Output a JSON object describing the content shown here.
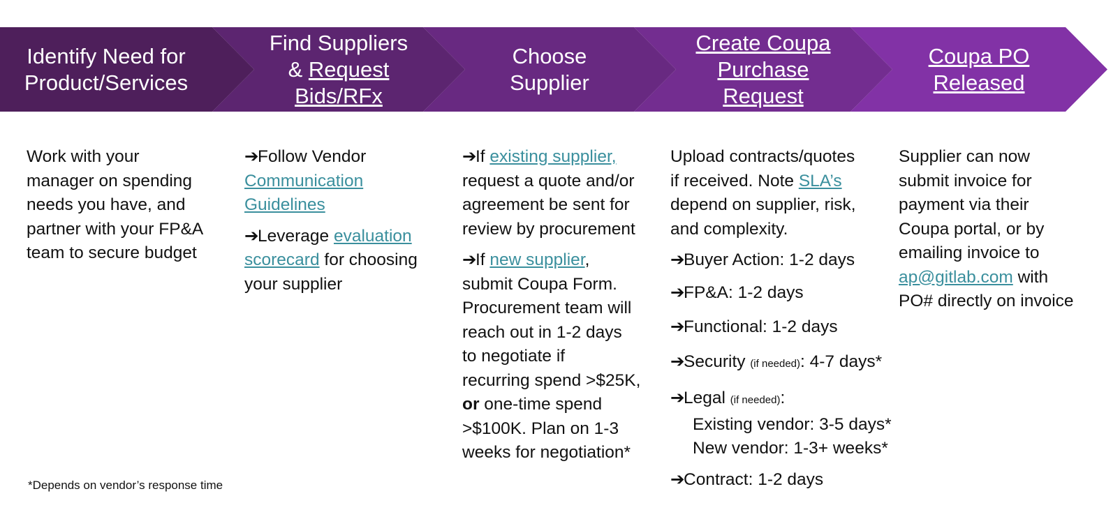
{
  "steps": [
    {
      "line1": "Identify Need for",
      "line2": "Product/Services"
    },
    {
      "line1": "Find Suppliers",
      "line2_prefix": "& ",
      "line2_link": "Request",
      "line3_link": "Bids/RFx"
    },
    {
      "line1": "Choose",
      "line2": "Supplier"
    },
    {
      "line1": "Create Coupa",
      "line2": "Purchase",
      "line3": "Request"
    },
    {
      "line1": "Coupa PO",
      "line2": "Released"
    }
  ],
  "arrow": "➔",
  "col1": {
    "lines": [
      "Work with your",
      "manager on spending",
      "needs you have, and",
      "partner with your FP&A",
      "team to secure budget"
    ]
  },
  "col2": {
    "item1_text": "Follow Vendor",
    "item1_link1": "Communication",
    "item1_link2": "Guidelines",
    "item2_text": "Leverage ",
    "item2_link1": "evaluation",
    "item2_link2": "scorecard",
    "item2_rest": " for choosing",
    "item2_line3": "your supplier"
  },
  "col3": {
    "item1_prefix": "If ",
    "item1_link": "existing supplier,",
    "item1_lines": [
      "request a quote and/or",
      "agreement be sent for",
      "review by procurement"
    ],
    "item2_prefix": "If ",
    "item2_link": "new supplier",
    "item2_suffix": ",",
    "item2_lines": [
      "submit Coupa Form.",
      "Procurement team will",
      "reach out in 1-2 days",
      "to negotiate if",
      "recurring spend >$25K,"
    ],
    "item2_bold": "or",
    "item2_after_bold": " one-time spend",
    "item2_lines2": [
      ">$100K. Plan on 1-3",
      "weeks for negotiation*"
    ]
  },
  "col4": {
    "intro_line1": "Upload contracts/quotes",
    "intro_line2_prefix": "if received. Note ",
    "intro_link": "SLA’s",
    "intro_line3": "depend on supplier, risk,",
    "intro_line4": "and complexity.",
    "buyer": "Buyer Action: 1-2 days",
    "fpa": "FP&A: 1-2 days",
    "functional": "Functional: 1-2 days",
    "security_label": "Security ",
    "security_note": "(if needed)",
    "security_value": ": 4-7 days*",
    "legal_label": "Legal ",
    "legal_note": "(if needed)",
    "legal_colon": ":",
    "legal_existing": "Existing vendor: 3-5 days*",
    "legal_new": "New vendor: 1-3+ weeks*",
    "contract": "Contract: 1-2 days"
  },
  "col5": {
    "lines": [
      "Supplier can now",
      "submit invoice for",
      "payment via their",
      "Coupa portal, or by",
      "emailing invoice to"
    ],
    "email_link": "ap@gitlab.com",
    "after_email": " with",
    "last_line": "PO# directly on invoice"
  },
  "footnote": "*Depends on vendor’s response time",
  "colors": {
    "chevron1": "#4e1f5b",
    "chevron2": "#5c2570",
    "chevron3": "#682981",
    "chevron4": "#732d90",
    "chevron5": "#8232a6",
    "link": "#3a8f9d"
  }
}
